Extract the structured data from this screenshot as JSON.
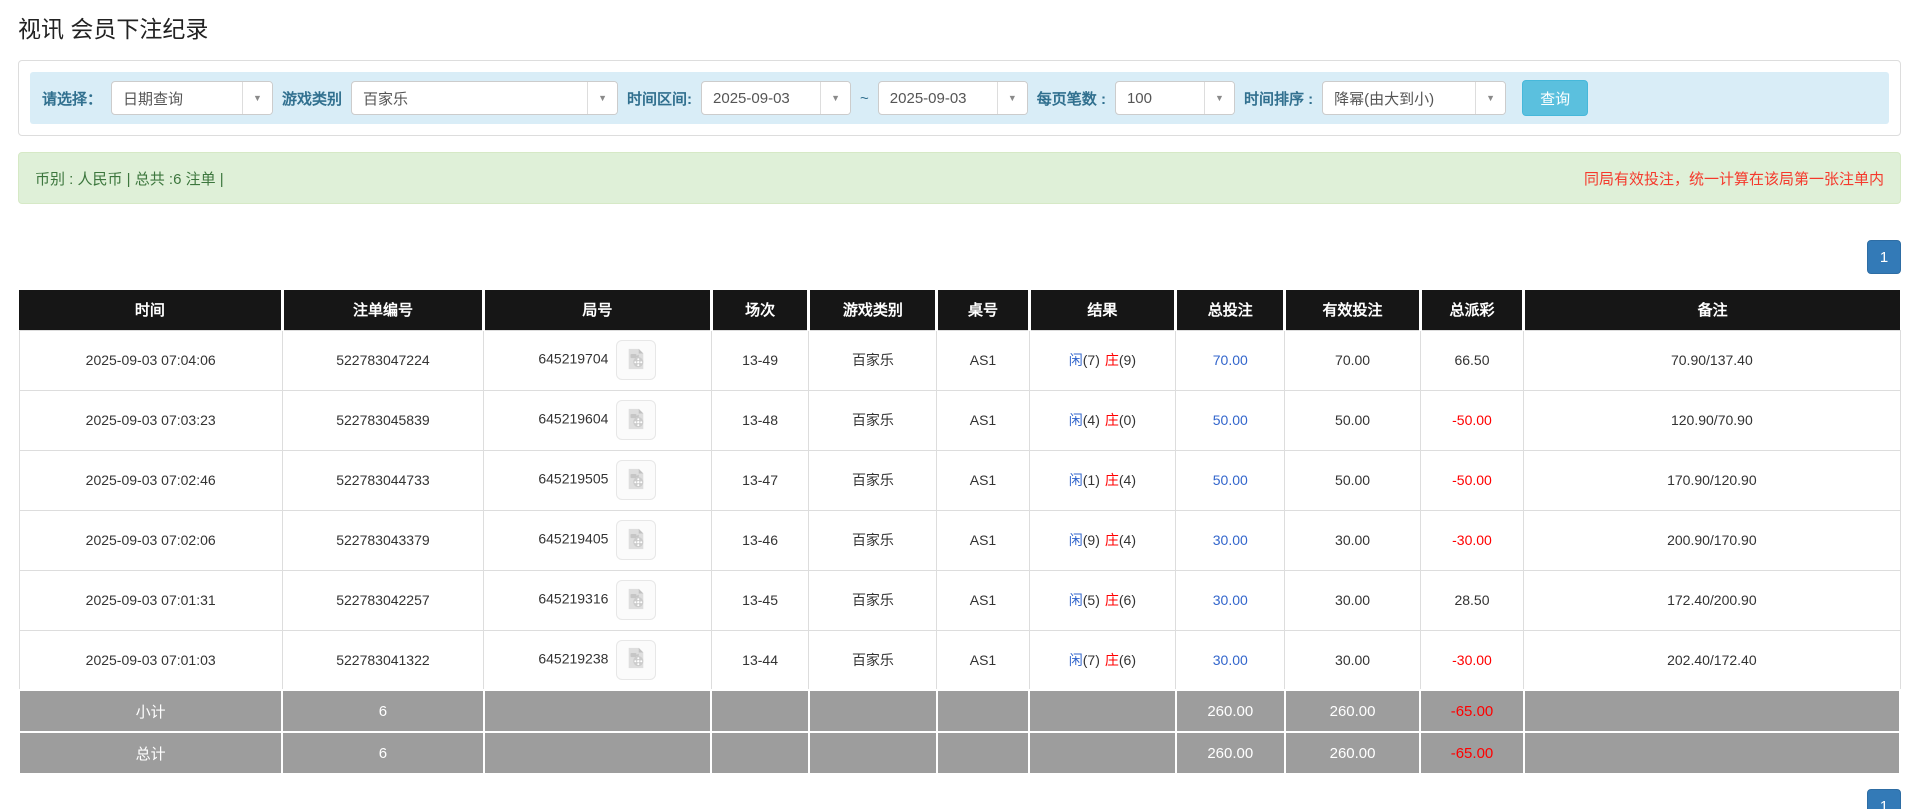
{
  "page": {
    "title": "视讯 会员下注纪录"
  },
  "filters": {
    "select_label": "请选择：",
    "select_value": "日期查询",
    "game_type_label": "游戏类别",
    "game_type_value": "百家乐",
    "date_range_label": "时间区间:",
    "date_from": "2025-09-03",
    "date_separator": "~",
    "date_to": "2025-09-03",
    "page_size_label": "每页笔数 :",
    "page_size_value": "100",
    "sort_label": "时间排序 :",
    "sort_value": "降幂(由大到小)",
    "search_button": "查询",
    "dropdown_arrow": "▼"
  },
  "summary_bar": {
    "left_text": "币别 : 人民币 | 总共 :6 注单 |",
    "right_text": "同局有效投注，统一计算在该局第一张注单内"
  },
  "pagination": {
    "page": "1"
  },
  "table": {
    "headers": [
      "时间",
      "注单编号",
      "局号",
      "场次",
      "游戏类别",
      "桌号",
      "结果",
      "总投注",
      "有效投注",
      "总派彩",
      "备注"
    ],
    "rows": [
      {
        "time": "2025-09-03 07:04:06",
        "bet_id": "522783047224",
        "round_id": "645219704",
        "session": "13-49",
        "game": "百家乐",
        "table_no": "AS1",
        "player": "闲",
        "player_score": "(7)",
        "banker": "庄",
        "banker_score": "(9)",
        "total_bet": "70.00",
        "valid_bet": "70.00",
        "payout": "66.50",
        "remark": "70.90/137.40"
      },
      {
        "time": "2025-09-03 07:03:23",
        "bet_id": "522783045839",
        "round_id": "645219604",
        "session": "13-48",
        "game": "百家乐",
        "table_no": "AS1",
        "player": "闲",
        "player_score": "(4)",
        "banker": "庄",
        "banker_score": "(0)",
        "total_bet": "50.00",
        "valid_bet": "50.00",
        "payout": "-50.00",
        "remark": "120.90/70.90"
      },
      {
        "time": "2025-09-03 07:02:46",
        "bet_id": "522783044733",
        "round_id": "645219505",
        "session": "13-47",
        "game": "百家乐",
        "table_no": "AS1",
        "player": "闲",
        "player_score": "(1)",
        "banker": "庄",
        "banker_score": "(4)",
        "total_bet": "50.00",
        "valid_bet": "50.00",
        "payout": "-50.00",
        "remark": "170.90/120.90"
      },
      {
        "time": "2025-09-03 07:02:06",
        "bet_id": "522783043379",
        "round_id": "645219405",
        "session": "13-46",
        "game": "百家乐",
        "table_no": "AS1",
        "player": "闲",
        "player_score": "(9)",
        "banker": "庄",
        "banker_score": "(4)",
        "total_bet": "30.00",
        "valid_bet": "30.00",
        "payout": "-30.00",
        "remark": "200.90/170.90"
      },
      {
        "time": "2025-09-03 07:01:31",
        "bet_id": "522783042257",
        "round_id": "645219316",
        "session": "13-45",
        "game": "百家乐",
        "table_no": "AS1",
        "player": "闲",
        "player_score": "(5)",
        "banker": "庄",
        "banker_score": "(6)",
        "total_bet": "30.00",
        "valid_bet": "30.00",
        "payout": "28.50",
        "remark": "172.40/200.90"
      },
      {
        "time": "2025-09-03 07:01:03",
        "bet_id": "522783041322",
        "round_id": "645219238",
        "session": "13-44",
        "game": "百家乐",
        "table_no": "AS1",
        "player": "闲",
        "player_score": "(7)",
        "banker": "庄",
        "banker_score": "(6)",
        "total_bet": "30.00",
        "valid_bet": "30.00",
        "payout": "-30.00",
        "remark": "202.40/172.40"
      }
    ],
    "subtotal": {
      "label": "小计",
      "count": "6",
      "total_bet": "260.00",
      "valid_bet": "260.00",
      "payout": "-65.00"
    },
    "total": {
      "label": "总计",
      "count": "6",
      "total_bet": "260.00",
      "valid_bet": "260.00",
      "payout": "-65.00"
    }
  },
  "colors": {
    "filter_bar_bg": "#d9edf7",
    "filter_label": "#31708f",
    "search_button_bg": "#5bc0de",
    "summary_bg": "#dff0d8",
    "summary_text": "#3c763d",
    "notice_red": "#f5392c",
    "header_bg": "#161616",
    "link_blue": "#3366cc",
    "banker_red": "#ff0000",
    "negative_red": "#ff0000",
    "subtotal_bg": "#9d9d9d",
    "pager_bg": "#337ab7"
  }
}
